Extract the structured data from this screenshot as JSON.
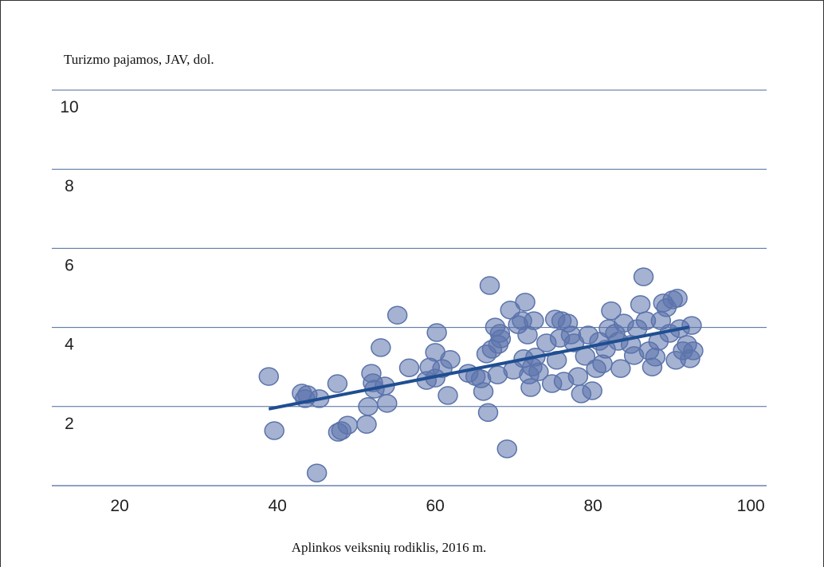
{
  "chart_data": {
    "type": "scatter",
    "title": "Turizmo pajamos, JAV, dol.",
    "xlabel": "Aplinkos veiksnių rodiklis, 2016 m.",
    "xlim": [
      11.4,
      102
    ],
    "xticks": [
      20,
      40,
      60,
      80,
      100
    ],
    "ylim": [
      0,
      10
    ],
    "yticks": [
      2,
      4,
      6,
      8,
      10
    ],
    "grid": true,
    "series": [
      {
        "color": "#5b73ab",
        "x": [
          38.9,
          39.6,
          43.1,
          43.5,
          43.8,
          45.3,
          45.0,
          47.6,
          47.7,
          48.1,
          48.9,
          51.3,
          51.5,
          51.9,
          52.1,
          52.3,
          53.1,
          53.6,
          53.9,
          55.2,
          56.7,
          58.9,
          59.3,
          60.0,
          60.0,
          60.2,
          60.9,
          61.9,
          61.6,
          64.2,
          65.1,
          65.8,
          66.1,
          66.7,
          66.9,
          66.5,
          67.2,
          68.0,
          68.3,
          67.6,
          68.2,
          67.9,
          69.1,
          69.5,
          69.9,
          70.5,
          71.0,
          71.4,
          71.2,
          71.7,
          71.9,
          72.3,
          72.1,
          72.5,
          72.7,
          73.1,
          74.1,
          74.8,
          75.2,
          75.4,
          75.8,
          76.0,
          76.3,
          76.8,
          77.2,
          77.6,
          78.1,
          78.5,
          79.0,
          79.4,
          79.9,
          80.4,
          80.8,
          81.2,
          81.6,
          82.0,
          82.3,
          82.8,
          83.2,
          83.5,
          83.9,
          84.8,
          85.2,
          85.6,
          86.0,
          86.4,
          86.7,
          87.1,
          87.5,
          87.9,
          88.3,
          88.6,
          88.9,
          89.3,
          89.7,
          90.1,
          90.5,
          90.7,
          91.0,
          91.4,
          91.9,
          92.3,
          92.5,
          92.7
        ],
        "y": [
          2.76,
          1.39,
          2.34,
          2.2,
          2.3,
          2.2,
          0.32,
          2.58,
          1.35,
          1.39,
          1.53,
          1.55,
          2.0,
          2.84,
          2.6,
          2.44,
          3.49,
          2.52,
          2.08,
          4.31,
          2.98,
          2.66,
          3.0,
          2.72,
          3.37,
          3.87,
          2.96,
          3.19,
          2.28,
          2.84,
          2.76,
          2.7,
          2.38,
          1.85,
          5.06,
          3.33,
          3.45,
          3.57,
          3.71,
          4.01,
          3.85,
          2.8,
          0.93,
          4.44,
          2.92,
          4.07,
          4.17,
          4.64,
          3.21,
          3.81,
          2.8,
          3.0,
          2.48,
          4.17,
          3.25,
          2.88,
          3.61,
          2.58,
          4.21,
          3.17,
          3.73,
          4.17,
          2.64,
          4.11,
          3.81,
          3.61,
          2.76,
          2.32,
          3.27,
          3.81,
          2.4,
          2.96,
          3.65,
          3.08,
          3.45,
          3.97,
          4.42,
          3.85,
          3.65,
          2.96,
          4.11,
          3.57,
          3.29,
          3.97,
          4.58,
          5.28,
          4.17,
          3.41,
          3.0,
          3.25,
          3.65,
          4.17,
          4.62,
          4.5,
          3.85,
          4.7,
          3.17,
          4.74,
          3.97,
          3.41,
          3.57,
          3.21,
          4.05,
          3.41
        ]
      }
    ],
    "trendline": {
      "color": "#1f4e91",
      "x": [
        38.9,
        92.2
      ],
      "y": [
        1.94,
        4.01
      ]
    }
  }
}
